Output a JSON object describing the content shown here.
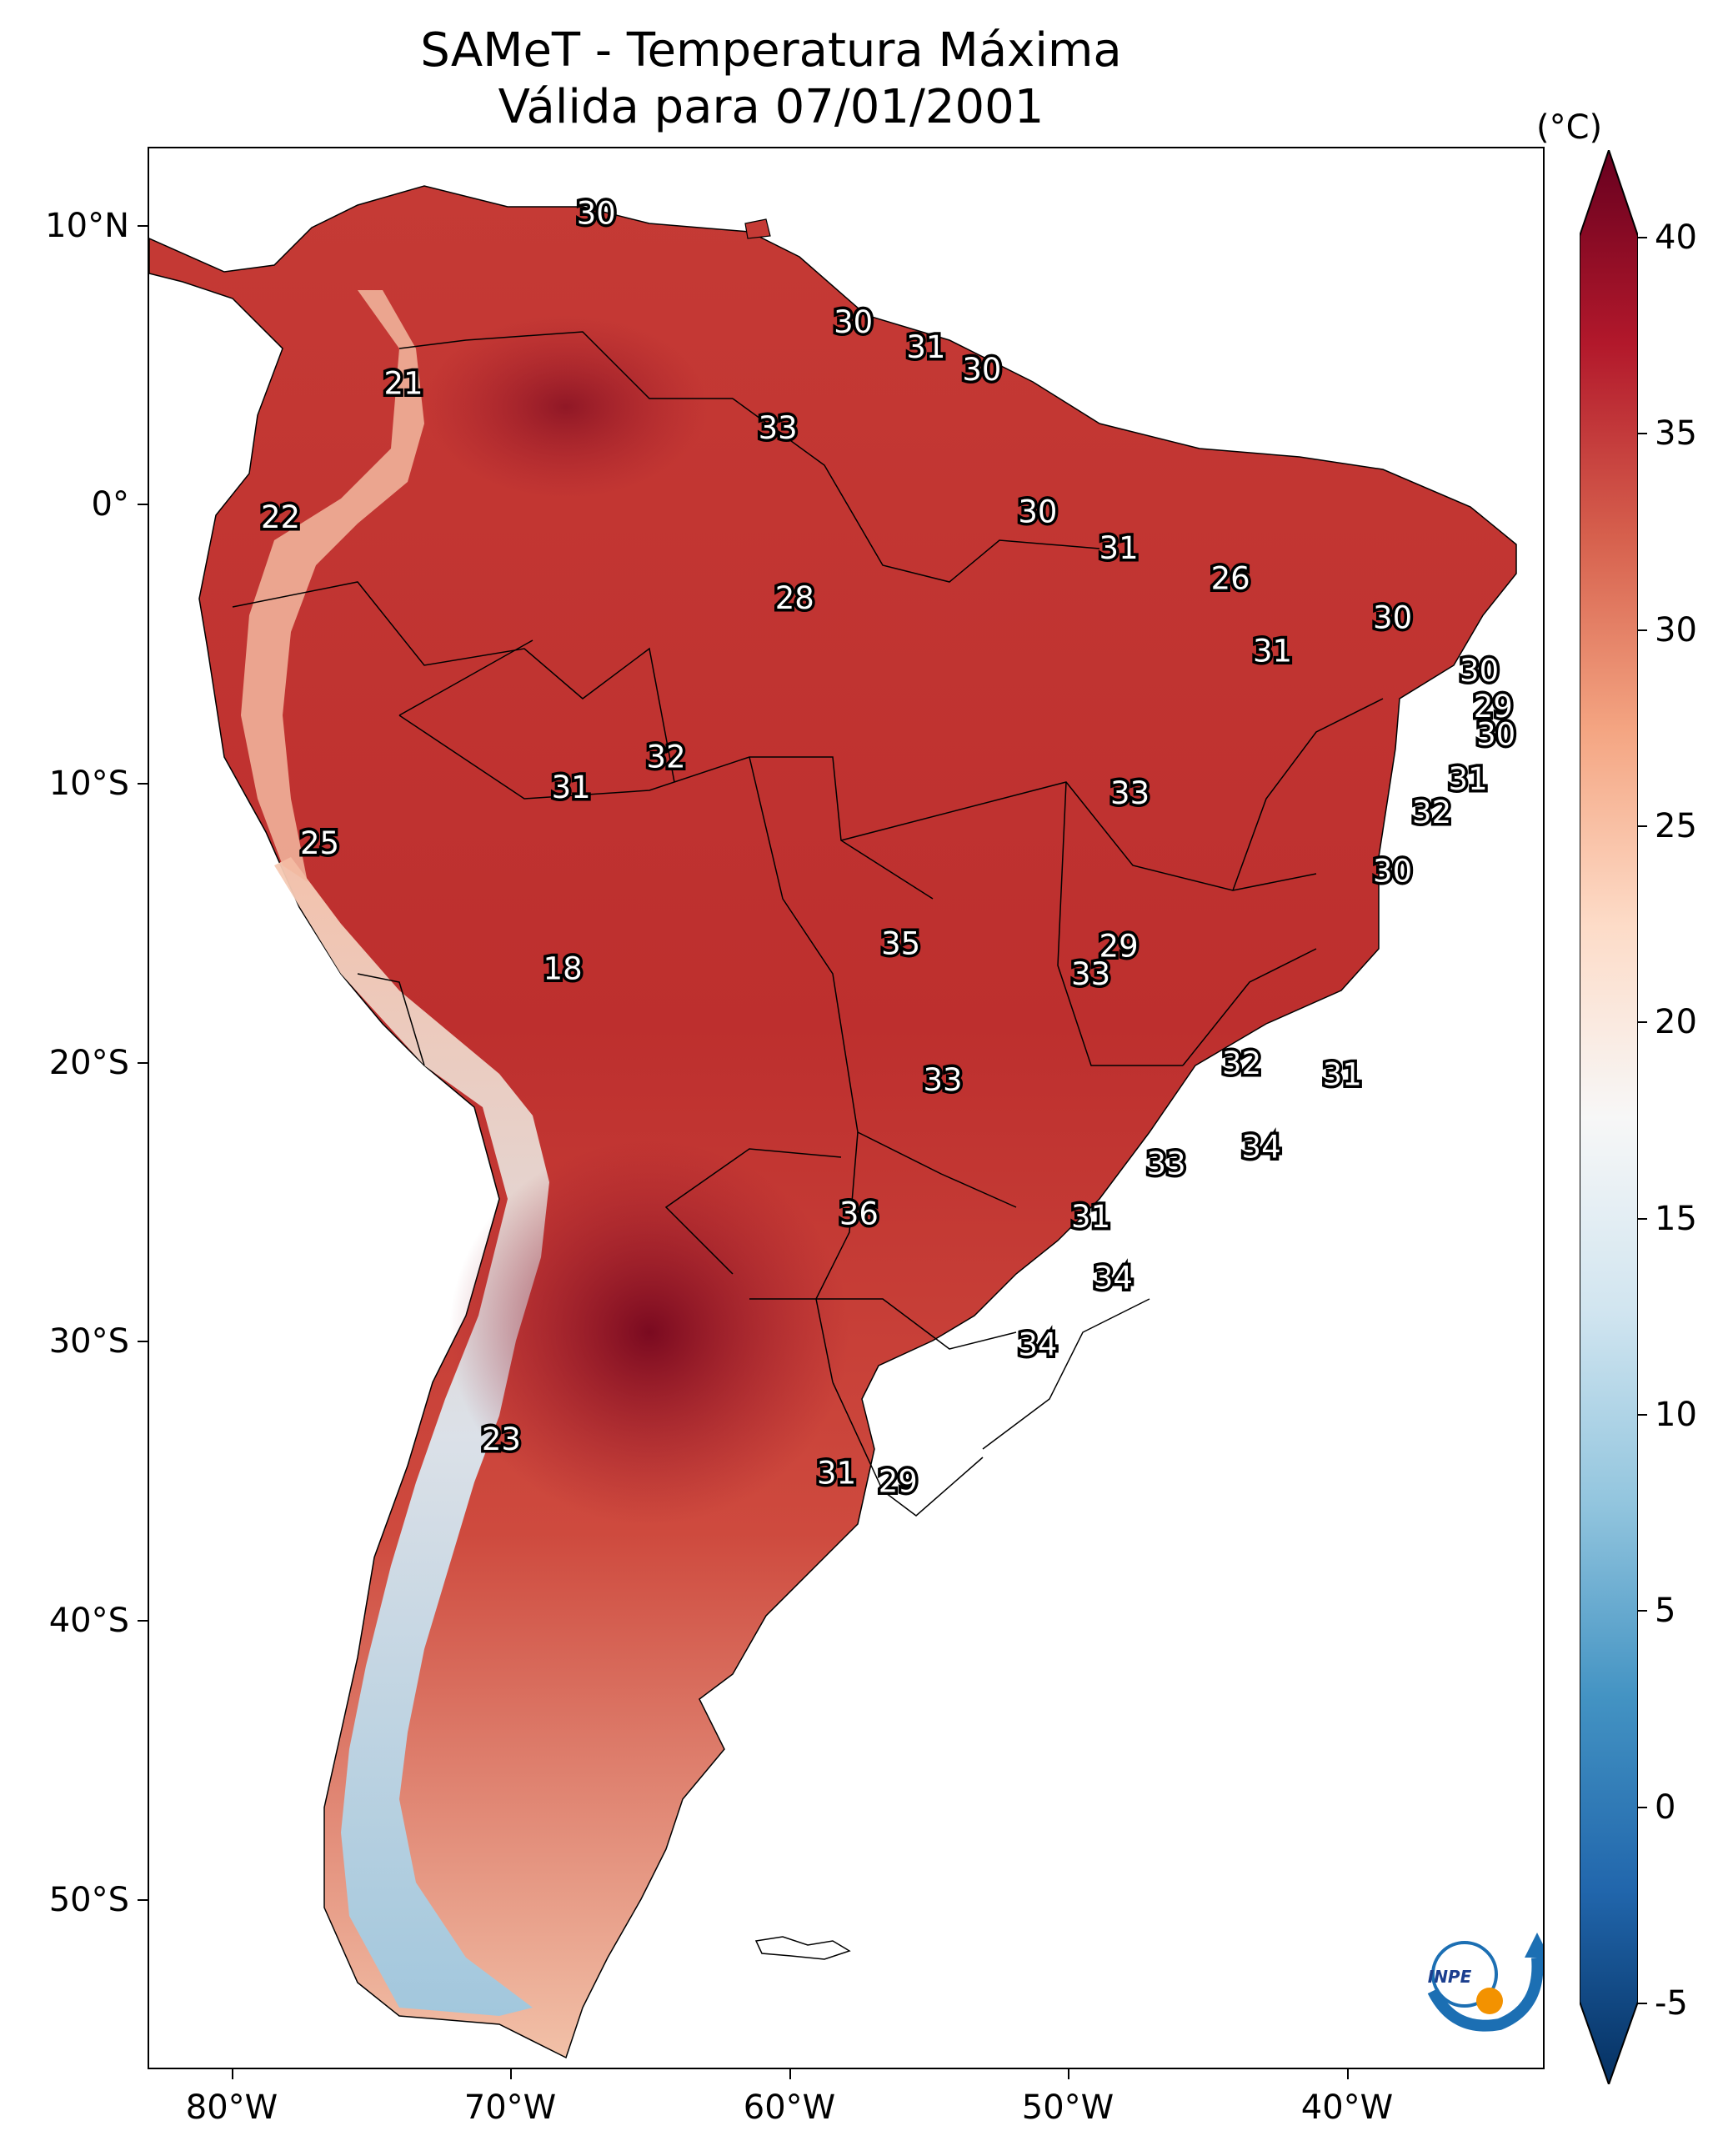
{
  "title": {
    "line1": "SAMeT - Temperatura Máxima",
    "line2": "Válida para 07/01/2001"
  },
  "map": {
    "lon_range": [
      -83,
      -33
    ],
    "lat_range": [
      -56,
      13
    ],
    "lat_labels": [
      "10°N",
      "0°",
      "10°S",
      "20°S",
      "30°S",
      "40°S",
      "50°S"
    ],
    "lon_labels": [
      "80°W",
      "70°W",
      "60°W",
      "50°W",
      "40°W"
    ],
    "logo_text": "INPE",
    "values": [
      {
        "label": "30",
        "lon": -67.0,
        "lat": 10.6
      },
      {
        "label": "30",
        "lon": -57.8,
        "lat": 6.7
      },
      {
        "label": "31",
        "lon": -55.2,
        "lat": 5.8
      },
      {
        "label": "30",
        "lon": -53.2,
        "lat": 5.0
      },
      {
        "label": "21",
        "lon": -73.9,
        "lat": 4.5
      },
      {
        "label": "33",
        "lon": -60.5,
        "lat": 2.9
      },
      {
        "label": "22",
        "lon": -78.3,
        "lat": -0.3
      },
      {
        "label": "30",
        "lon": -51.2,
        "lat": -0.1
      },
      {
        "label": "31",
        "lon": -48.3,
        "lat": -1.4
      },
      {
        "label": "26",
        "lon": -44.3,
        "lat": -2.5
      },
      {
        "label": "28",
        "lon": -59.9,
        "lat": -3.2
      },
      {
        "label": "30",
        "lon": -38.5,
        "lat": -3.9
      },
      {
        "label": "31",
        "lon": -42.8,
        "lat": -5.1
      },
      {
        "label": "30",
        "lon": -35.4,
        "lat": -5.8
      },
      {
        "label": "29",
        "lon": -34.9,
        "lat": -7.1
      },
      {
        "label": "30",
        "lon": -34.8,
        "lat": -8.1
      },
      {
        "label": "32",
        "lon": -64.5,
        "lat": -8.9
      },
      {
        "label": "31",
        "lon": -67.9,
        "lat": -10.0
      },
      {
        "label": "31",
        "lon": -35.8,
        "lat": -9.7
      },
      {
        "label": "33",
        "lon": -47.9,
        "lat": -10.2
      },
      {
        "label": "32",
        "lon": -37.1,
        "lat": -10.9
      },
      {
        "label": "25",
        "lon": -76.9,
        "lat": -12.0
      },
      {
        "label": "30",
        "lon": -38.5,
        "lat": -13.0
      },
      {
        "label": "35",
        "lon": -56.1,
        "lat": -15.6
      },
      {
        "label": "29",
        "lon": -48.3,
        "lat": -15.7
      },
      {
        "label": "18",
        "lon": -68.2,
        "lat": -16.5
      },
      {
        "label": "33",
        "lon": -49.3,
        "lat": -16.7
      },
      {
        "label": "32",
        "lon": -43.9,
        "lat": -19.9
      },
      {
        "label": "31",
        "lon": -40.3,
        "lat": -20.3
      },
      {
        "label": "33",
        "lon": -54.6,
        "lat": -20.5
      },
      {
        "label": "34",
        "lon": -43.2,
        "lat": -22.9
      },
      {
        "label": "33",
        "lon": -46.6,
        "lat": -23.5
      },
      {
        "label": "36",
        "lon": -57.6,
        "lat": -25.3
      },
      {
        "label": "31",
        "lon": -49.3,
        "lat": -25.4
      },
      {
        "label": "34",
        "lon": -48.5,
        "lat": -27.6
      },
      {
        "label": "34",
        "lon": -51.2,
        "lat": -30.0
      },
      {
        "label": "23",
        "lon": -70.4,
        "lat": -33.4
      },
      {
        "label": "31",
        "lon": -58.4,
        "lat": -34.6
      },
      {
        "label": "29",
        "lon": -56.2,
        "lat": -34.9
      }
    ]
  },
  "colorbar": {
    "unit": "(°C)",
    "ticks": [
      "-5",
      "0",
      "5",
      "10",
      "15",
      "20",
      "25",
      "30",
      "35",
      "40"
    ],
    "range": [
      -5,
      40
    ],
    "colors": [
      "#053061",
      "#2166ac",
      "#4393c3",
      "#92c5de",
      "#d1e5f0",
      "#f7f7f7",
      "#fddbc7",
      "#f4a582",
      "#d6604d",
      "#b2182b",
      "#67001f"
    ]
  }
}
